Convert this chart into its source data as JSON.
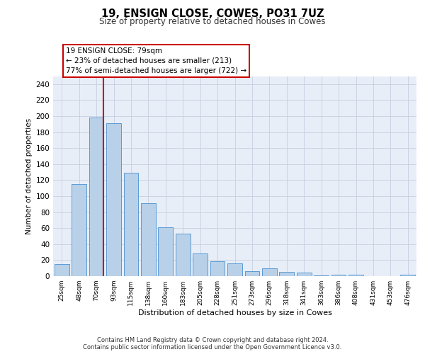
{
  "title": "19, ENSIGN CLOSE, COWES, PO31 7UZ",
  "subtitle": "Size of property relative to detached houses in Cowes",
  "xlabel": "Distribution of detached houses by size in Cowes",
  "ylabel": "Number of detached properties",
  "categories": [
    "25sqm",
    "48sqm",
    "70sqm",
    "93sqm",
    "115sqm",
    "138sqm",
    "160sqm",
    "183sqm",
    "205sqm",
    "228sqm",
    "251sqm",
    "273sqm",
    "296sqm",
    "318sqm",
    "341sqm",
    "363sqm",
    "386sqm",
    "408sqm",
    "431sqm",
    "453sqm",
    "476sqm"
  ],
  "bar_values": [
    15,
    115,
    198,
    191,
    129,
    91,
    61,
    53,
    28,
    19,
    16,
    6,
    10,
    5,
    4,
    1,
    2,
    2,
    0,
    0,
    2
  ],
  "bar_color": "#b8d0e8",
  "bar_edge_color": "#5b9bd5",
  "red_line_x": 2,
  "annotation_line1": "19 ENSIGN CLOSE: 79sqm",
  "annotation_line2": "← 23% of detached houses are smaller (213)",
  "annotation_line3": "77% of semi-detached houses are larger (722) →",
  "ylim_max": 250,
  "yticks": [
    0,
    20,
    40,
    60,
    80,
    100,
    120,
    140,
    160,
    180,
    200,
    220,
    240
  ],
  "footer1": "Contains HM Land Registry data © Crown copyright and database right 2024.",
  "footer2": "Contains public sector information licensed under the Open Government Licence v3.0.",
  "bg_color": "#e8eef8"
}
